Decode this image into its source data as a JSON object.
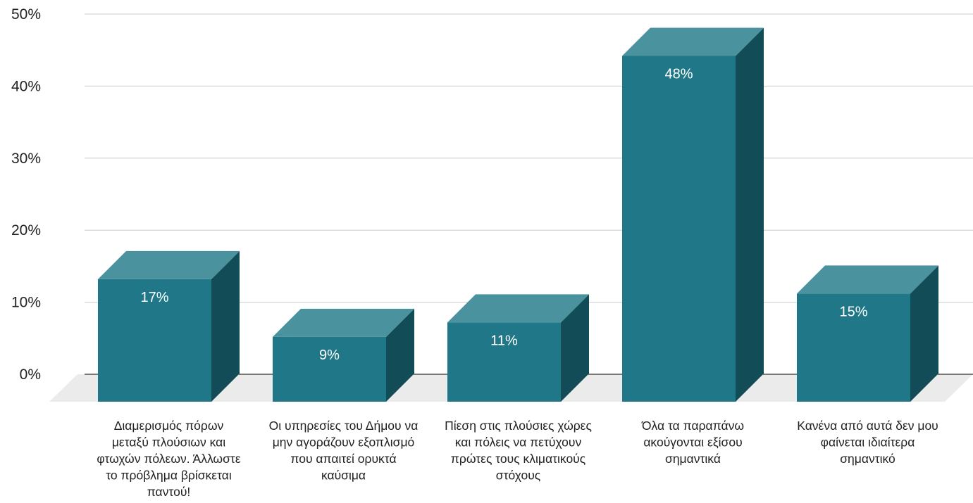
{
  "chart_data": {
    "type": "bar",
    "style": "3d-column",
    "categories": [
      [
        "Διαμερισμός πόρων",
        "μεταξύ πλούσιων και",
        "φτωχών πόλεων. Άλλωστε",
        "το πρόβλημα βρίσκεται",
        "παντού!"
      ],
      [
        "Οι υπηρεσίες του Δήμου να",
        "μην αγοράζουν εξοπλισμό",
        "που απαιτεί ορυκτά",
        "καύσιμα"
      ],
      [
        "Πίεση στις πλούσιες χώρες",
        "και πόλεις να πετύχουν",
        "πρώτες τους κλιματικούς",
        "στόχους"
      ],
      [
        "Όλα τα παραπάνω",
        "ακούγονται εξίσου",
        "σημαντικά"
      ],
      [
        "Κανένα από αυτά δεν μου",
        "φαίνεται ιδιαίτερα",
        "σημαντικό"
      ]
    ],
    "values": [
      17,
      9,
      11,
      48,
      15
    ],
    "data_labels": [
      "17%",
      "9%",
      "11%",
      "48%",
      "15%"
    ],
    "y_ticks": [
      "0%",
      "10%",
      "20%",
      "30%",
      "40%",
      "50%"
    ],
    "ylim": [
      0,
      50
    ],
    "grid": true,
    "legend": "none",
    "title": "",
    "xlabel": "",
    "ylabel": "",
    "colors": {
      "front": "#1f7787",
      "top": "#4a929e",
      "side": "#124c56",
      "floor": "#ebebeb",
      "grid": "#cccccc",
      "baseline": "#333333"
    }
  }
}
